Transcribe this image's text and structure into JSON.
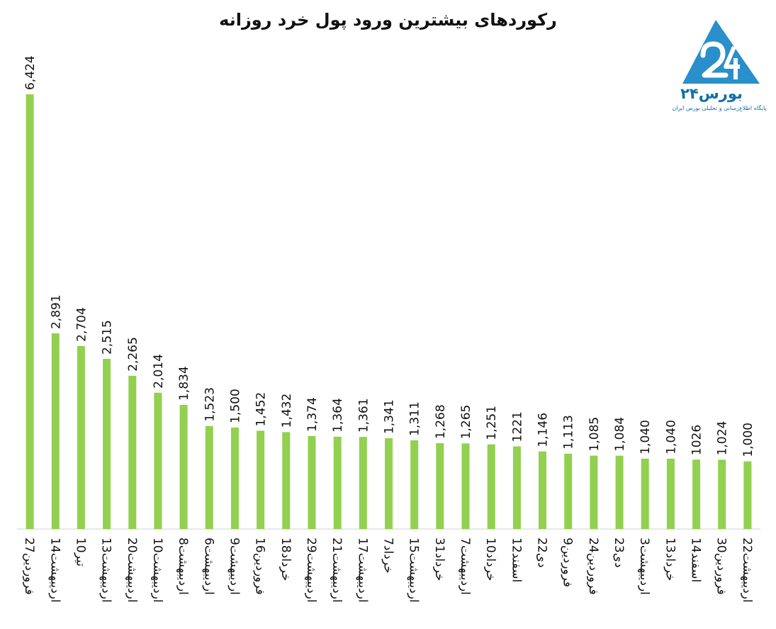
{
  "chart_data": {
    "type": "bar",
    "title": "رکوردهای بیشترین ورود پول خرد روزانه",
    "categories": [
      "27فروردین",
      "14اردیبهشت",
      "10تیر",
      "13اردیبهشت",
      "20اردیبهشت",
      "10اردیبهشت",
      "8اردیبهشت",
      "6اردیبهشت",
      "9اردیبهشت",
      "16فروردین",
      "18خرداد",
      "29اردیبهشت",
      "21اردیبهشت",
      "17اردیبهشت",
      "7خرداد",
      "15اردیبهشت",
      "31خرداد",
      "7اردیبهشت",
      "10خرداد",
      "12اسفند",
      "22دی",
      "9فروردین",
      "24فروردین",
      "23دی",
      "3اردیبهشت",
      "13خرداد",
      "14اسفند",
      "30فروردین",
      "22اردیبهشت"
    ],
    "values": [
      6424,
      2891,
      2704,
      2515,
      2265,
      2014,
      1834,
      1523,
      1500,
      1452,
      1432,
      1374,
      1364,
      1361,
      1341,
      1311,
      1268,
      1265,
      1251,
      1221,
      1146,
      1113,
      1085,
      1084,
      1040,
      1040,
      1026,
      1024,
      1000
    ],
    "value_labels": [
      "6,424",
      "2,891",
      "2,704",
      "2,515",
      "2,265",
      "2,014",
      "1,834",
      "1,523",
      "1,500",
      "1,452",
      "1,432",
      "1,374",
      "1,364",
      "1,361",
      "1,341",
      "1,311",
      "1,268",
      "1,265",
      "1,251",
      "1221",
      "1,146",
      "1,113",
      "1,085",
      "1,084",
      "1,040",
      "1,040",
      "1026",
      "1,024",
      "1,000"
    ],
    "bar_color": "#92d050",
    "xlabel": "",
    "ylabel": "",
    "ylim": [
      0,
      6424
    ],
    "grid": false,
    "legend": "none"
  },
  "logo": {
    "name": "بورس۲۴",
    "tagline": "پایگاه اطلاع‌رسانی و تحلیلی بورس ایران",
    "color": "#1f8ac7"
  }
}
